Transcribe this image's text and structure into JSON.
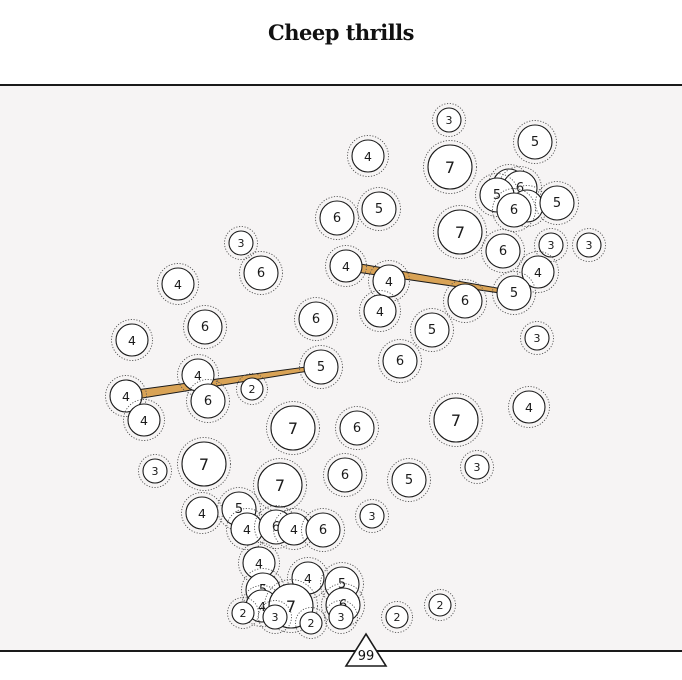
{
  "title": "Cheep thrills",
  "counter": "99",
  "colors": {
    "background": "#f6f4f4",
    "header": "#ffffff",
    "link_fill": "#d9a356",
    "stroke": "#1a1a1a"
  },
  "nodes": [
    {
      "v": 3
    },
    {
      "v": 5
    },
    {
      "v": 4
    },
    {
      "v": 7
    },
    {
      "v": 4
    },
    {
      "v": 6
    },
    {
      "v": 5
    },
    {
      "v": 6
    },
    {
      "v": 4
    },
    {
      "v": 5
    },
    {
      "v": 7
    },
    {
      "v": 5
    },
    {
      "v": 6
    },
    {
      "v": 3
    },
    {
      "v": 3
    },
    {
      "v": 6
    },
    {
      "v": 3
    },
    {
      "v": 4
    },
    {
      "v": 4
    },
    {
      "v": 4
    },
    {
      "v": 4
    },
    {
      "v": 6
    },
    {
      "v": 5
    },
    {
      "v": 5
    },
    {
      "v": 6
    },
    {
      "v": 4
    },
    {
      "v": 6
    },
    {
      "v": 6
    },
    {
      "v": 3
    },
    {
      "v": 4
    },
    {
      "v": 4
    },
    {
      "v": 2
    },
    {
      "v": 5
    },
    {
      "v": 6
    },
    {
      "v": 4
    },
    {
      "v": 6
    },
    {
      "v": 4
    },
    {
      "v": 7
    },
    {
      "v": 6
    },
    {
      "v": 7
    },
    {
      "v": 4
    },
    {
      "v": 7
    },
    {
      "v": 3
    },
    {
      "v": 7
    },
    {
      "v": 6
    },
    {
      "v": 3
    },
    {
      "v": 5
    },
    {
      "v": 4
    },
    {
      "v": 5
    },
    {
      "v": 4
    },
    {
      "v": 6
    },
    {
      "v": 4
    },
    {
      "v": 6
    },
    {
      "v": 3
    },
    {
      "v": 4
    },
    {
      "v": 5
    },
    {
      "v": 4
    },
    {
      "v": 5
    },
    {
      "v": 4
    },
    {
      "v": 7
    },
    {
      "v": 6
    },
    {
      "v": 3
    },
    {
      "v": 2
    },
    {
      "v": 3
    },
    {
      "v": 2
    },
    {
      "v": 2
    },
    {
      "v": 2
    }
  ],
  "links": [
    {
      "from": 34,
      "to": 32
    },
    {
      "from": 17,
      "to": 22
    }
  ]
}
